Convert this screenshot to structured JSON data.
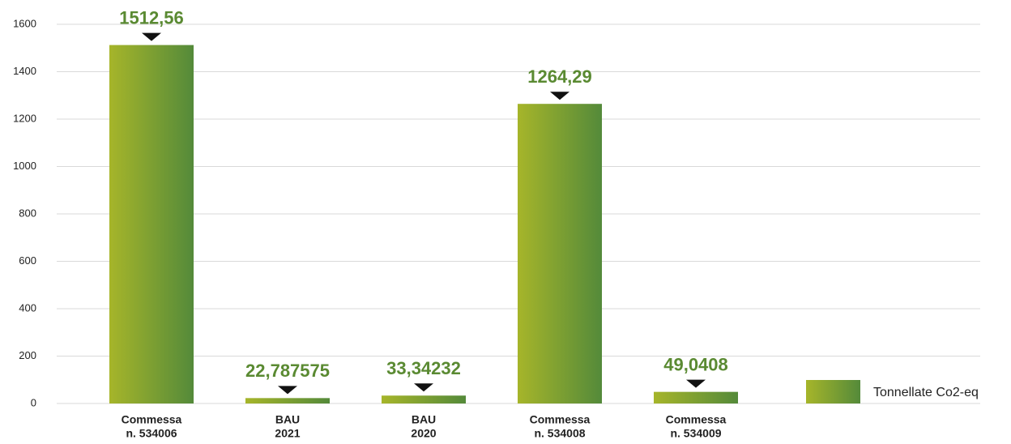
{
  "chart_data": {
    "type": "bar",
    "categories": [
      [
        "Commessa",
        "n. 534006"
      ],
      [
        "BAU",
        "2021"
      ],
      [
        "BAU",
        "2020"
      ],
      [
        "Commessa",
        "n. 534008"
      ],
      [
        "Commessa",
        "n. 534009"
      ]
    ],
    "series": [
      {
        "name": "Tonnellate Co2-eq",
        "color": [
          "#a6b52a",
          "#548a3a"
        ],
        "values": [
          1512.56,
          22.787575,
          33.34232,
          1264.29,
          49.0408
        ],
        "value_labels": [
          "1512,56",
          "22,787575",
          "33,34232",
          "1264,29",
          "49,0408"
        ]
      }
    ],
    "ylim": [
      0,
      1600
    ],
    "yticks": [
      0,
      200,
      400,
      600,
      800,
      1000,
      1200,
      1400,
      1600
    ],
    "grid": true,
    "legend": "right"
  }
}
